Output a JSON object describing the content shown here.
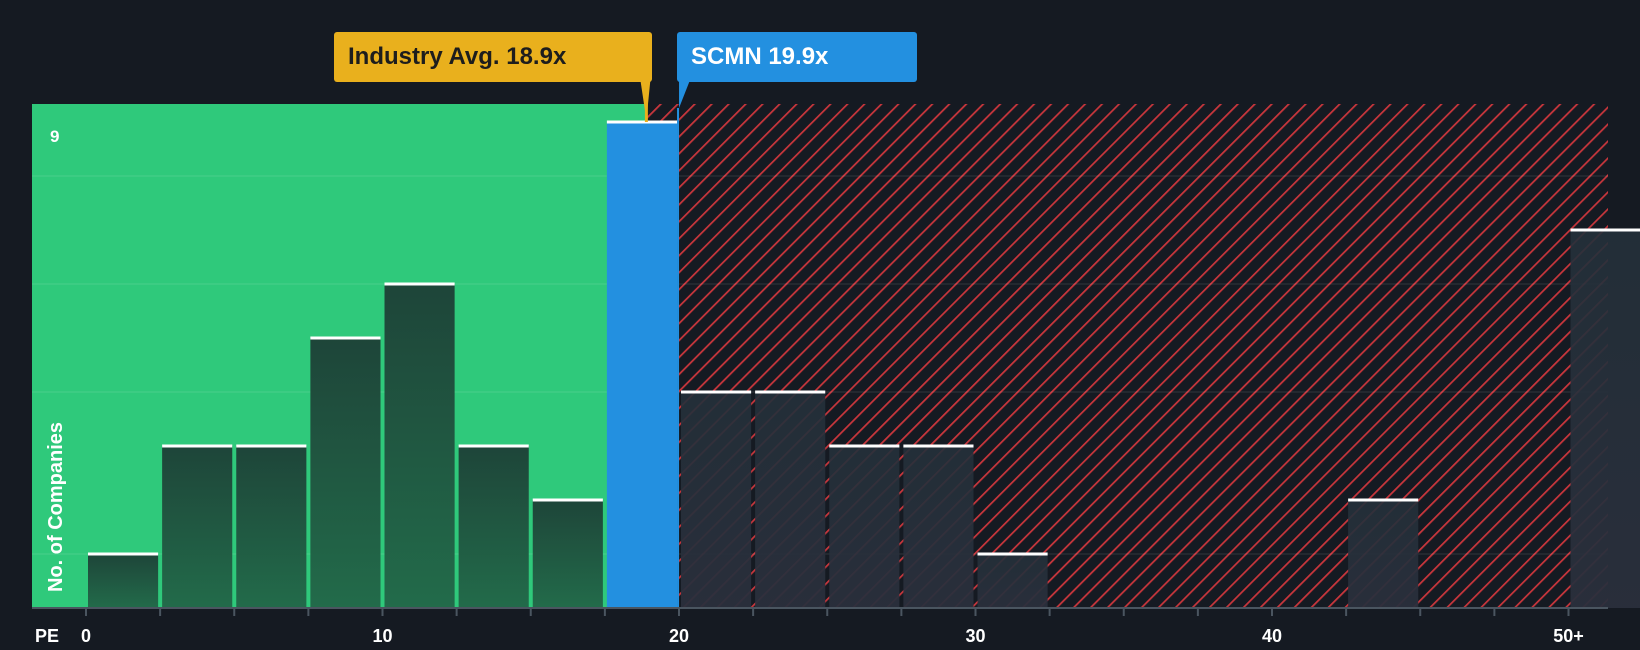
{
  "chart_data": {
    "type": "bar",
    "title": "",
    "xlabel": "PE",
    "ylabel": "No. of Companies",
    "x_ticks": [
      "0",
      "10",
      "20",
      "30",
      "40",
      "50+"
    ],
    "y_tick_label": "9",
    "ylim": [
      0,
      9
    ],
    "bin_width": 2.5,
    "bins": [
      {
        "start": 0,
        "value": 1
      },
      {
        "start": 2.5,
        "value": 3
      },
      {
        "start": 5,
        "value": 3
      },
      {
        "start": 7.5,
        "value": 5
      },
      {
        "start": 10,
        "value": 6
      },
      {
        "start": 12.5,
        "value": 3
      },
      {
        "start": 15,
        "value": 2
      },
      {
        "start": 17.5,
        "value": 9,
        "highlight": true
      },
      {
        "start": 20,
        "value": 4
      },
      {
        "start": 22.5,
        "value": 4
      },
      {
        "start": 25,
        "value": 3
      },
      {
        "start": 27.5,
        "value": 3
      },
      {
        "start": 30,
        "value": 1
      },
      {
        "start": 42.5,
        "value": 2
      },
      {
        "start": 50,
        "value": 7
      }
    ],
    "industry_avg": {
      "value": 18.9,
      "label": "Industry Avg. 18.9x"
    },
    "company": {
      "ticker": "SCMN",
      "value": 19.9,
      "label": "SCMN 19.9x"
    },
    "colors": {
      "background": "#151a22",
      "undervalued_zone": "#2fc97b",
      "overvalued_hatch": "#c9363c",
      "highlight_bar": "#2390e0",
      "industry_marker": "#e9b01d",
      "bar_fill": "#1f4a3c"
    }
  }
}
